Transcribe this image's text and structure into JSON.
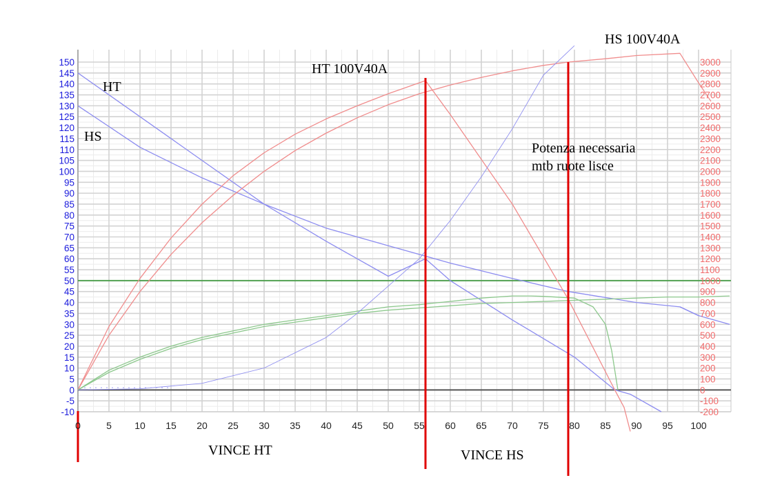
{
  "chart_data": {
    "type": "line",
    "title": "",
    "xlabel": "",
    "ylabel": "",
    "xlim": [
      0,
      100
    ],
    "ylim_left": [
      -10,
      150
    ],
    "ylim_right": [
      -200,
      3000
    ],
    "grid": true,
    "x_ticks": [
      0,
      5,
      10,
      15,
      20,
      25,
      30,
      35,
      40,
      45,
      50,
      55,
      60,
      65,
      70,
      75,
      80,
      85,
      90,
      95,
      100
    ],
    "left_ticks": [
      -10,
      -5,
      0,
      5,
      10,
      15,
      20,
      25,
      30,
      35,
      40,
      45,
      50,
      55,
      60,
      65,
      70,
      75,
      80,
      85,
      90,
      95,
      100,
      105,
      110,
      115,
      120,
      125,
      130,
      135,
      140,
      145,
      150
    ],
    "right_ticks": [
      -200,
      -100,
      0,
      100,
      200,
      300,
      400,
      500,
      600,
      700,
      800,
      900,
      1000,
      1100,
      1200,
      1300,
      1400,
      1500,
      1600,
      1700,
      1800,
      1900,
      2000,
      2100,
      2200,
      2300,
      2400,
      2500,
      2600,
      2700,
      2800,
      2900,
      3000
    ],
    "colors": {
      "torque": "#8c8cf0",
      "power": "#f08c8c",
      "efficiency": "#8cc88c",
      "required_power": "#9090f0",
      "reference_line": "#50a050",
      "marker": "#e00000",
      "left_axis_text": "#1a1adc",
      "right_axis_text": "#f06a6a"
    },
    "series": [
      {
        "key": "ht_torque",
        "axis": "left",
        "color": "#8c8cf0",
        "width": 1.3,
        "x": [
          0,
          10,
          20,
          30,
          40,
          50,
          56,
          60,
          70,
          80,
          86.5,
          89,
          94
        ],
        "y": [
          145,
          125,
          105,
          85,
          68,
          52,
          60,
          50,
          32,
          15,
          0,
          -2,
          -10
        ]
      },
      {
        "key": "hs_torque",
        "axis": "left",
        "color": "#8c8cf0",
        "width": 1.3,
        "x": [
          0,
          10,
          20,
          30,
          40,
          50,
          60,
          70,
          79,
          90,
          97,
          100
        ],
        "y": [
          130,
          111,
          97,
          85,
          74,
          66,
          58,
          51,
          45,
          40,
          38,
          34
        ]
      },
      {
        "key": "hs_torque_tail",
        "axis": "left",
        "color": "#8c8cf0",
        "width": 1.3,
        "x": [
          97,
          100,
          105
        ],
        "y": [
          38,
          34,
          30
        ]
      },
      {
        "key": "ht_power",
        "axis": "right",
        "color": "#f08c8c",
        "width": 1.3,
        "x": [
          0,
          5,
          10,
          15,
          20,
          25,
          30,
          35,
          40,
          45,
          50,
          56,
          60,
          70,
          79,
          86.5,
          88,
          89
        ],
        "y": [
          0,
          580,
          1020,
          1390,
          1700,
          1960,
          2170,
          2340,
          2480,
          2600,
          2710,
          2830,
          2520,
          1700,
          830,
          0,
          -160,
          -380
        ]
      },
      {
        "key": "hs_power",
        "axis": "right",
        "color": "#f08c8c",
        "width": 1.3,
        "x": [
          0,
          5,
          10,
          15,
          20,
          25,
          30,
          35,
          40,
          45,
          50,
          55,
          60,
          65,
          70,
          75,
          79,
          85,
          90,
          97,
          100,
          102
        ],
        "y": [
          0,
          500,
          900,
          1240,
          1530,
          1780,
          2000,
          2190,
          2350,
          2490,
          2610,
          2710,
          2790,
          2860,
          2920,
          2970,
          3000,
          3030,
          3060,
          3080,
          2810,
          2640
        ]
      },
      {
        "key": "ht_efficiency",
        "axis": "left",
        "color": "#8cc88c",
        "width": 1.3,
        "x": [
          0,
          5,
          10,
          15,
          20,
          25,
          30,
          35,
          40,
          45,
          50,
          55,
          60,
          65,
          70,
          73,
          75,
          80,
          83,
          85,
          86,
          87
        ],
        "y": [
          0,
          9,
          15,
          20,
          24,
          27,
          30,
          32,
          34,
          36,
          38,
          39,
          40.5,
          42,
          43,
          43,
          42.8,
          42,
          38,
          30,
          18,
          0
        ]
      },
      {
        "key": "hs_efficiency",
        "axis": "left",
        "color": "#8cc88c",
        "width": 1.3,
        "x": [
          0,
          5,
          10,
          15,
          20,
          25,
          30,
          35,
          40,
          45,
          50,
          55,
          60,
          65,
          70,
          75,
          80,
          85,
          90,
          95,
          100,
          105
        ],
        "y": [
          0,
          8,
          14,
          19,
          23,
          26,
          29,
          31,
          33,
          35,
          36.5,
          37.5,
          38.5,
          39.5,
          40,
          40.5,
          41,
          41.5,
          42,
          42.5,
          42.5,
          43
        ]
      },
      {
        "key": "required_power",
        "axis": "right",
        "color": "#9090f0",
        "width": 0.9,
        "x": [
          0,
          10,
          20,
          30,
          40,
          45,
          50,
          55,
          60,
          65,
          70,
          75,
          80
        ],
        "y": [
          0,
          10,
          60,
          200,
          480,
          700,
          950,
          1200,
          1550,
          1950,
          2390,
          2880,
          3150
        ]
      }
    ],
    "reference_lines": [
      {
        "axis": "left",
        "y": 50,
        "color": "#50a050",
        "width": 2
      },
      {
        "axis": "left",
        "y": 0,
        "color": "#555555",
        "width": 2
      }
    ],
    "markers": [
      {
        "x": 0,
        "color": "#e00000"
      },
      {
        "x": 56,
        "color": "#e00000"
      },
      {
        "x": 79,
        "color": "#e00000"
      }
    ],
    "annotations": {
      "ht": "HT",
      "hs": "HS",
      "ht_100v40a": "HT 100V40A",
      "hs_100v40a": "HS 100V40A",
      "potenza_line1": "Potenza necessaria",
      "potenza_line2": "mtb ruote lisce",
      "vince_ht": "VINCE HT",
      "vince_hs": "VINCE HS"
    }
  }
}
